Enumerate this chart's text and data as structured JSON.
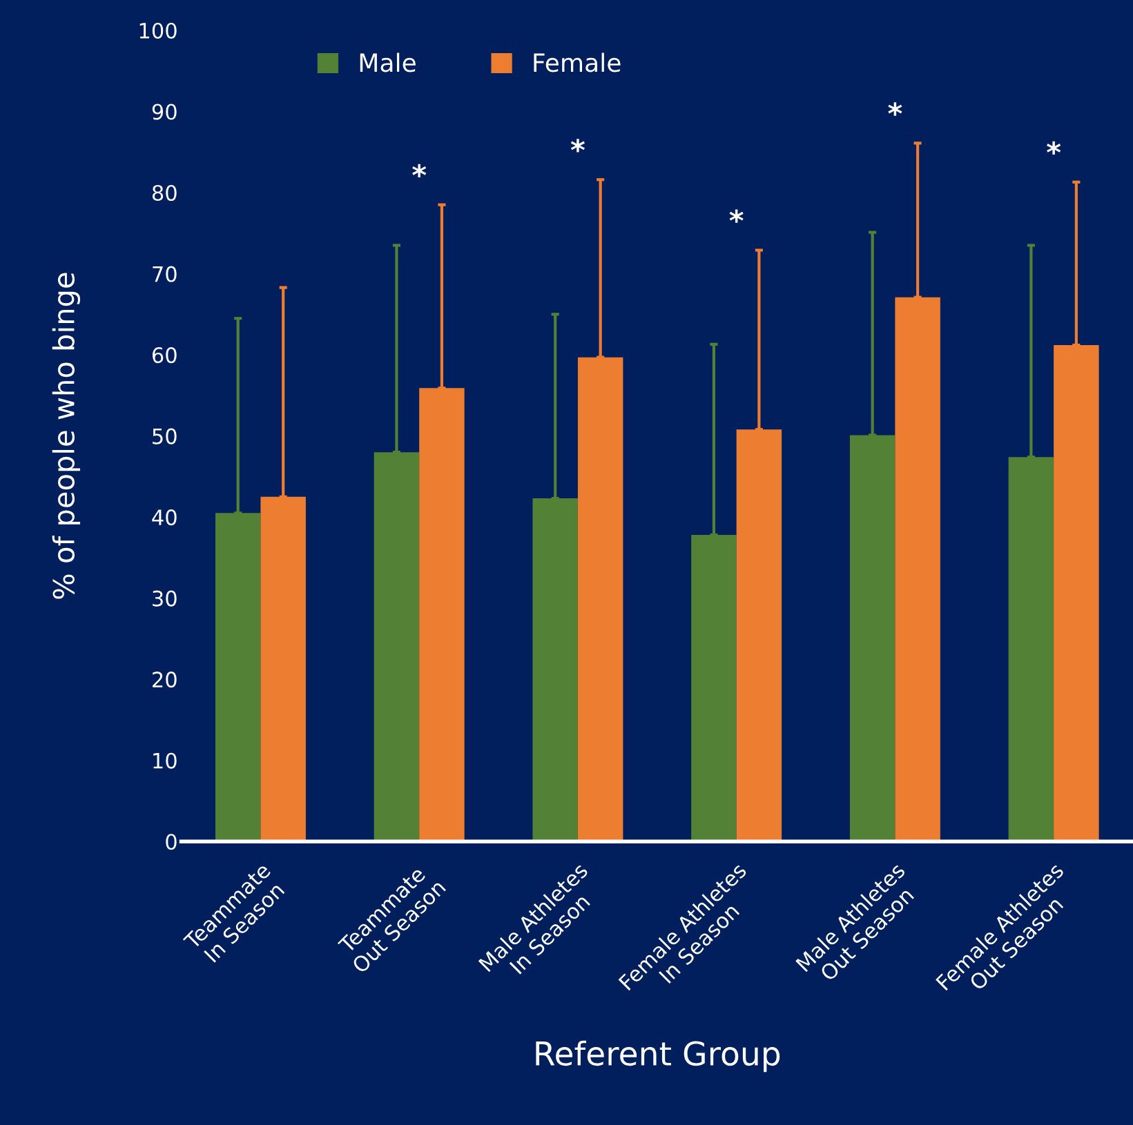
{
  "chart_data": {
    "type": "bar",
    "xlabel": "Referent Group",
    "ylabel": "% of people who binge",
    "categories": [
      "Teammate\nIn Season",
      "Teammate\nOut Season",
      "Male Athletes\nIn Season",
      "Female Athletes\nIn Season",
      "Male Athletes\nOut Season",
      "Female Athletes\nOut Season"
    ],
    "series": [
      {
        "name": "Male",
        "color": "#538135",
        "values": [
          40.5,
          48.0,
          42.3,
          37.8,
          50.1,
          47.4
        ],
        "errors": [
          [
            40.5,
            64.5
          ],
          [
            48.0,
            73.5
          ],
          [
            42.3,
            65.0
          ],
          [
            37.8,
            61.3
          ],
          [
            50.1,
            75.1
          ],
          [
            47.4,
            73.5
          ]
        ]
      },
      {
        "name": "Female",
        "color": "#ed7d31",
        "values": [
          42.5,
          55.9,
          59.7,
          50.8,
          67.1,
          61.2
        ],
        "errors": [
          [
            42.5,
            68.3
          ],
          [
            55.9,
            78.5
          ],
          [
            59.7,
            81.6
          ],
          [
            50.8,
            72.9
          ],
          [
            67.1,
            86.1
          ],
          [
            61.2,
            81.3
          ]
        ]
      }
    ],
    "ylim": [
      0,
      100
    ],
    "yticks": [
      0,
      10,
      20,
      30,
      40,
      50,
      60,
      70,
      80,
      90,
      100
    ],
    "grid": false,
    "legend": "top left",
    "annotations": [
      "*",
      "*",
      "*",
      "*",
      "*"
    ]
  }
}
